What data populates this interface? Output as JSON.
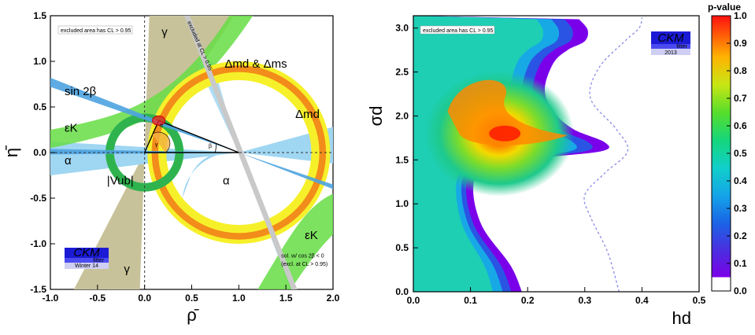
{
  "chart_data": [
    {
      "type": "constraint-plot",
      "xlabel": "ρ̄",
      "ylabel": "η̄",
      "xlim": [
        -1.0,
        2.0
      ],
      "ylim": [
        -1.5,
        1.5
      ],
      "xticks": [
        "-1.0",
        "-0.5",
        "0.0",
        "0.5",
        "1.0",
        "1.5",
        "2.0"
      ],
      "yticks": [
        "-1.5",
        "-1.0",
        "-0.5",
        "0.0",
        "0.5",
        "1.0",
        "1.5"
      ],
      "excluded_note": "excluded area has CL > 0.95",
      "excluded_note_diag": "excluded at CL > 0.95",
      "footnote_line1": "sol. w/ cos 2β < 0",
      "footnote_line2": "(excl. at CL > 0.95)",
      "logo_text": "CKM",
      "logo_sub": "fitter",
      "logo_season": "Winter 14",
      "labels": {
        "gamma_top": "γ",
        "gamma_bottom": "γ",
        "sin2beta": "sin 2β",
        "epsK_left": "εK",
        "epsK_right": "εK",
        "alpha_left": "α",
        "alpha_mid": "α",
        "Vub": "|Vub|",
        "dmd_dms": "Δmd & Δms",
        "dmd": "Δmd",
        "tri_alpha": "α",
        "tri_beta": "β",
        "tri_gamma": "γ"
      },
      "apex": [
        0.15,
        0.35
      ],
      "colors": {
        "gamma": "#c8c29a",
        "alpha": "#9fd6f2",
        "sin2beta": "#4da3e0",
        "epsK": "#66dd44",
        "Vub": "#2fb34f",
        "dmd_outer": "#f6f02a",
        "dmd_inner": "#f28c1a",
        "apex": "#ff2020"
      }
    },
    {
      "type": "heatmap",
      "xlabel": "hd",
      "ylabel": "σd",
      "xlim": [
        0.0,
        0.5
      ],
      "ylim": [
        0.0,
        3.14
      ],
      "xticks": [
        "0.0",
        "0.1",
        "0.2",
        "0.3",
        "0.4",
        "0.5"
      ],
      "yticks": [
        "0.0",
        "0.5",
        "1.0",
        "1.5",
        "2.0",
        "2.5",
        "3.0"
      ],
      "colorbar_title": "p-value",
      "colorbar_ticks": [
        "0.0",
        "0.1",
        "0.2",
        "0.3",
        "0.4",
        "0.5",
        "0.6",
        "0.7",
        "0.8",
        "0.9",
        "1.0"
      ],
      "excluded_note": "excluded area has CL > 0.95",
      "logo_text": "CKM",
      "logo_sub": "fitter",
      "logo_year": "2013",
      "max_point": {
        "hd": 0.15,
        "sigma": 1.8,
        "p": 1.0
      },
      "boundary_95": [
        [
          0.19,
          0.0
        ],
        [
          0.17,
          0.3
        ],
        [
          0.12,
          0.75
        ],
        [
          0.105,
          1.2
        ],
        [
          0.13,
          1.42
        ],
        [
          0.22,
          1.52
        ],
        [
          0.33,
          1.6
        ],
        [
          0.335,
          1.7
        ],
        [
          0.28,
          1.85
        ],
        [
          0.245,
          2.05
        ],
        [
          0.23,
          2.3
        ],
        [
          0.245,
          2.6
        ],
        [
          0.27,
          2.75
        ],
        [
          0.3,
          2.85
        ],
        [
          0.305,
          2.98
        ],
        [
          0.29,
          3.1
        ]
      ],
      "boundary_dashed": [
        [
          0.36,
          0.0
        ],
        [
          0.34,
          0.45
        ],
        [
          0.31,
          0.85
        ],
        [
          0.3,
          1.1
        ],
        [
          0.335,
          1.35
        ],
        [
          0.375,
          1.6
        ],
        [
          0.355,
          1.85
        ],
        [
          0.31,
          2.2
        ],
        [
          0.325,
          2.55
        ],
        [
          0.37,
          2.85
        ],
        [
          0.395,
          3.0
        ],
        [
          0.4,
          3.12
        ]
      ]
    }
  ]
}
